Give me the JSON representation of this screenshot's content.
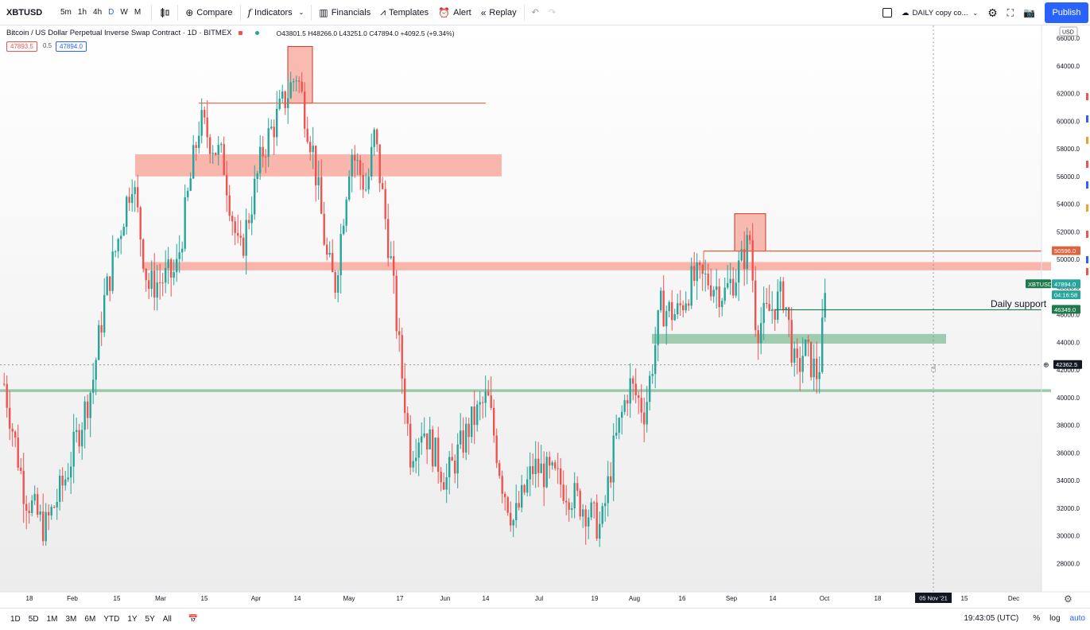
{
  "toolbar": {
    "symbol": "XBTUSD",
    "intervals": [
      "5m",
      "1h",
      "4h",
      "D",
      "W",
      "M"
    ],
    "active_interval": "D",
    "compare": "Compare",
    "indicators": "Indicators",
    "financials": "Financials",
    "templates": "Templates",
    "alert": "Alert",
    "replay": "Replay",
    "layout_name": "DAILY copy co...",
    "publish": "Publish",
    "currency": "USD"
  },
  "legend": {
    "title": "Bitcoin / US Dollar Perpetual Inverse Swap Contract · 1D · BITMEX",
    "ohlc": "O43801.5 H48266.0 L43251.0 C47894.0 +4092.5 (+9.34%)",
    "bid": "47893.5",
    "spread": "0.5",
    "ask": "47894.0"
  },
  "colors": {
    "up": "#26a69a",
    "down": "#ef5350",
    "resistance_zone": "#f8a99e",
    "support_zone": "#8fc4a2",
    "accent": "#2962ff"
  },
  "annotations": {
    "daily_support": "Daily support"
  },
  "price_axis": {
    "labels": [
      "66000.0",
      "64000.0",
      "62000.0",
      "60000.0",
      "58000.0",
      "56000.0",
      "54000.0",
      "52000.0",
      "50000.0",
      "48000.0",
      "46000.0",
      "44000.0",
      "42000.0",
      "40000.0",
      "38000.0",
      "36000.0",
      "34000.0",
      "32000.0",
      "30000.0",
      "28000.0"
    ],
    "badges": {
      "resistance": "50596.0",
      "symbol": "XBTUSD",
      "last": "47894.0",
      "countdown": "04:16:58",
      "support": "46349.0",
      "crosshair": "42362.5"
    }
  },
  "time_axis": {
    "labels": [
      "18",
      "Feb",
      "15",
      "Mar",
      "15",
      "Apr",
      "14",
      "May",
      "17",
      "Jun",
      "14",
      "Jul",
      "19",
      "Aug",
      "16",
      "Sep",
      "14",
      "Oct",
      "18",
      "15",
      "Dec"
    ],
    "crosshair_label": "05 Nov '21"
  },
  "bottombar": {
    "ranges": [
      "1D",
      "5D",
      "1M",
      "3M",
      "6M",
      "YTD",
      "1Y",
      "5Y",
      "All"
    ],
    "time": "19:43:05 (UTC)",
    "percent": "%",
    "log": "log",
    "auto": "auto"
  },
  "chart_data": {
    "type": "candlestick",
    "period": "1D",
    "y_range": [
      27000,
      66500
    ],
    "levels": {
      "daily_support": 46349.0,
      "upper_resistance_line": 50596.0,
      "top_resistance_line": 61300,
      "crosshair_price": 42362.5
    },
    "zones": [
      {
        "type": "resistance",
        "low": 56000,
        "high": 57600
      },
      {
        "type": "resistance",
        "low": 49200,
        "high": 49800
      },
      {
        "type": "support",
        "low": 43900,
        "high": 44600
      },
      {
        "type": "support",
        "low": 40400,
        "high": 40600
      }
    ]
  }
}
